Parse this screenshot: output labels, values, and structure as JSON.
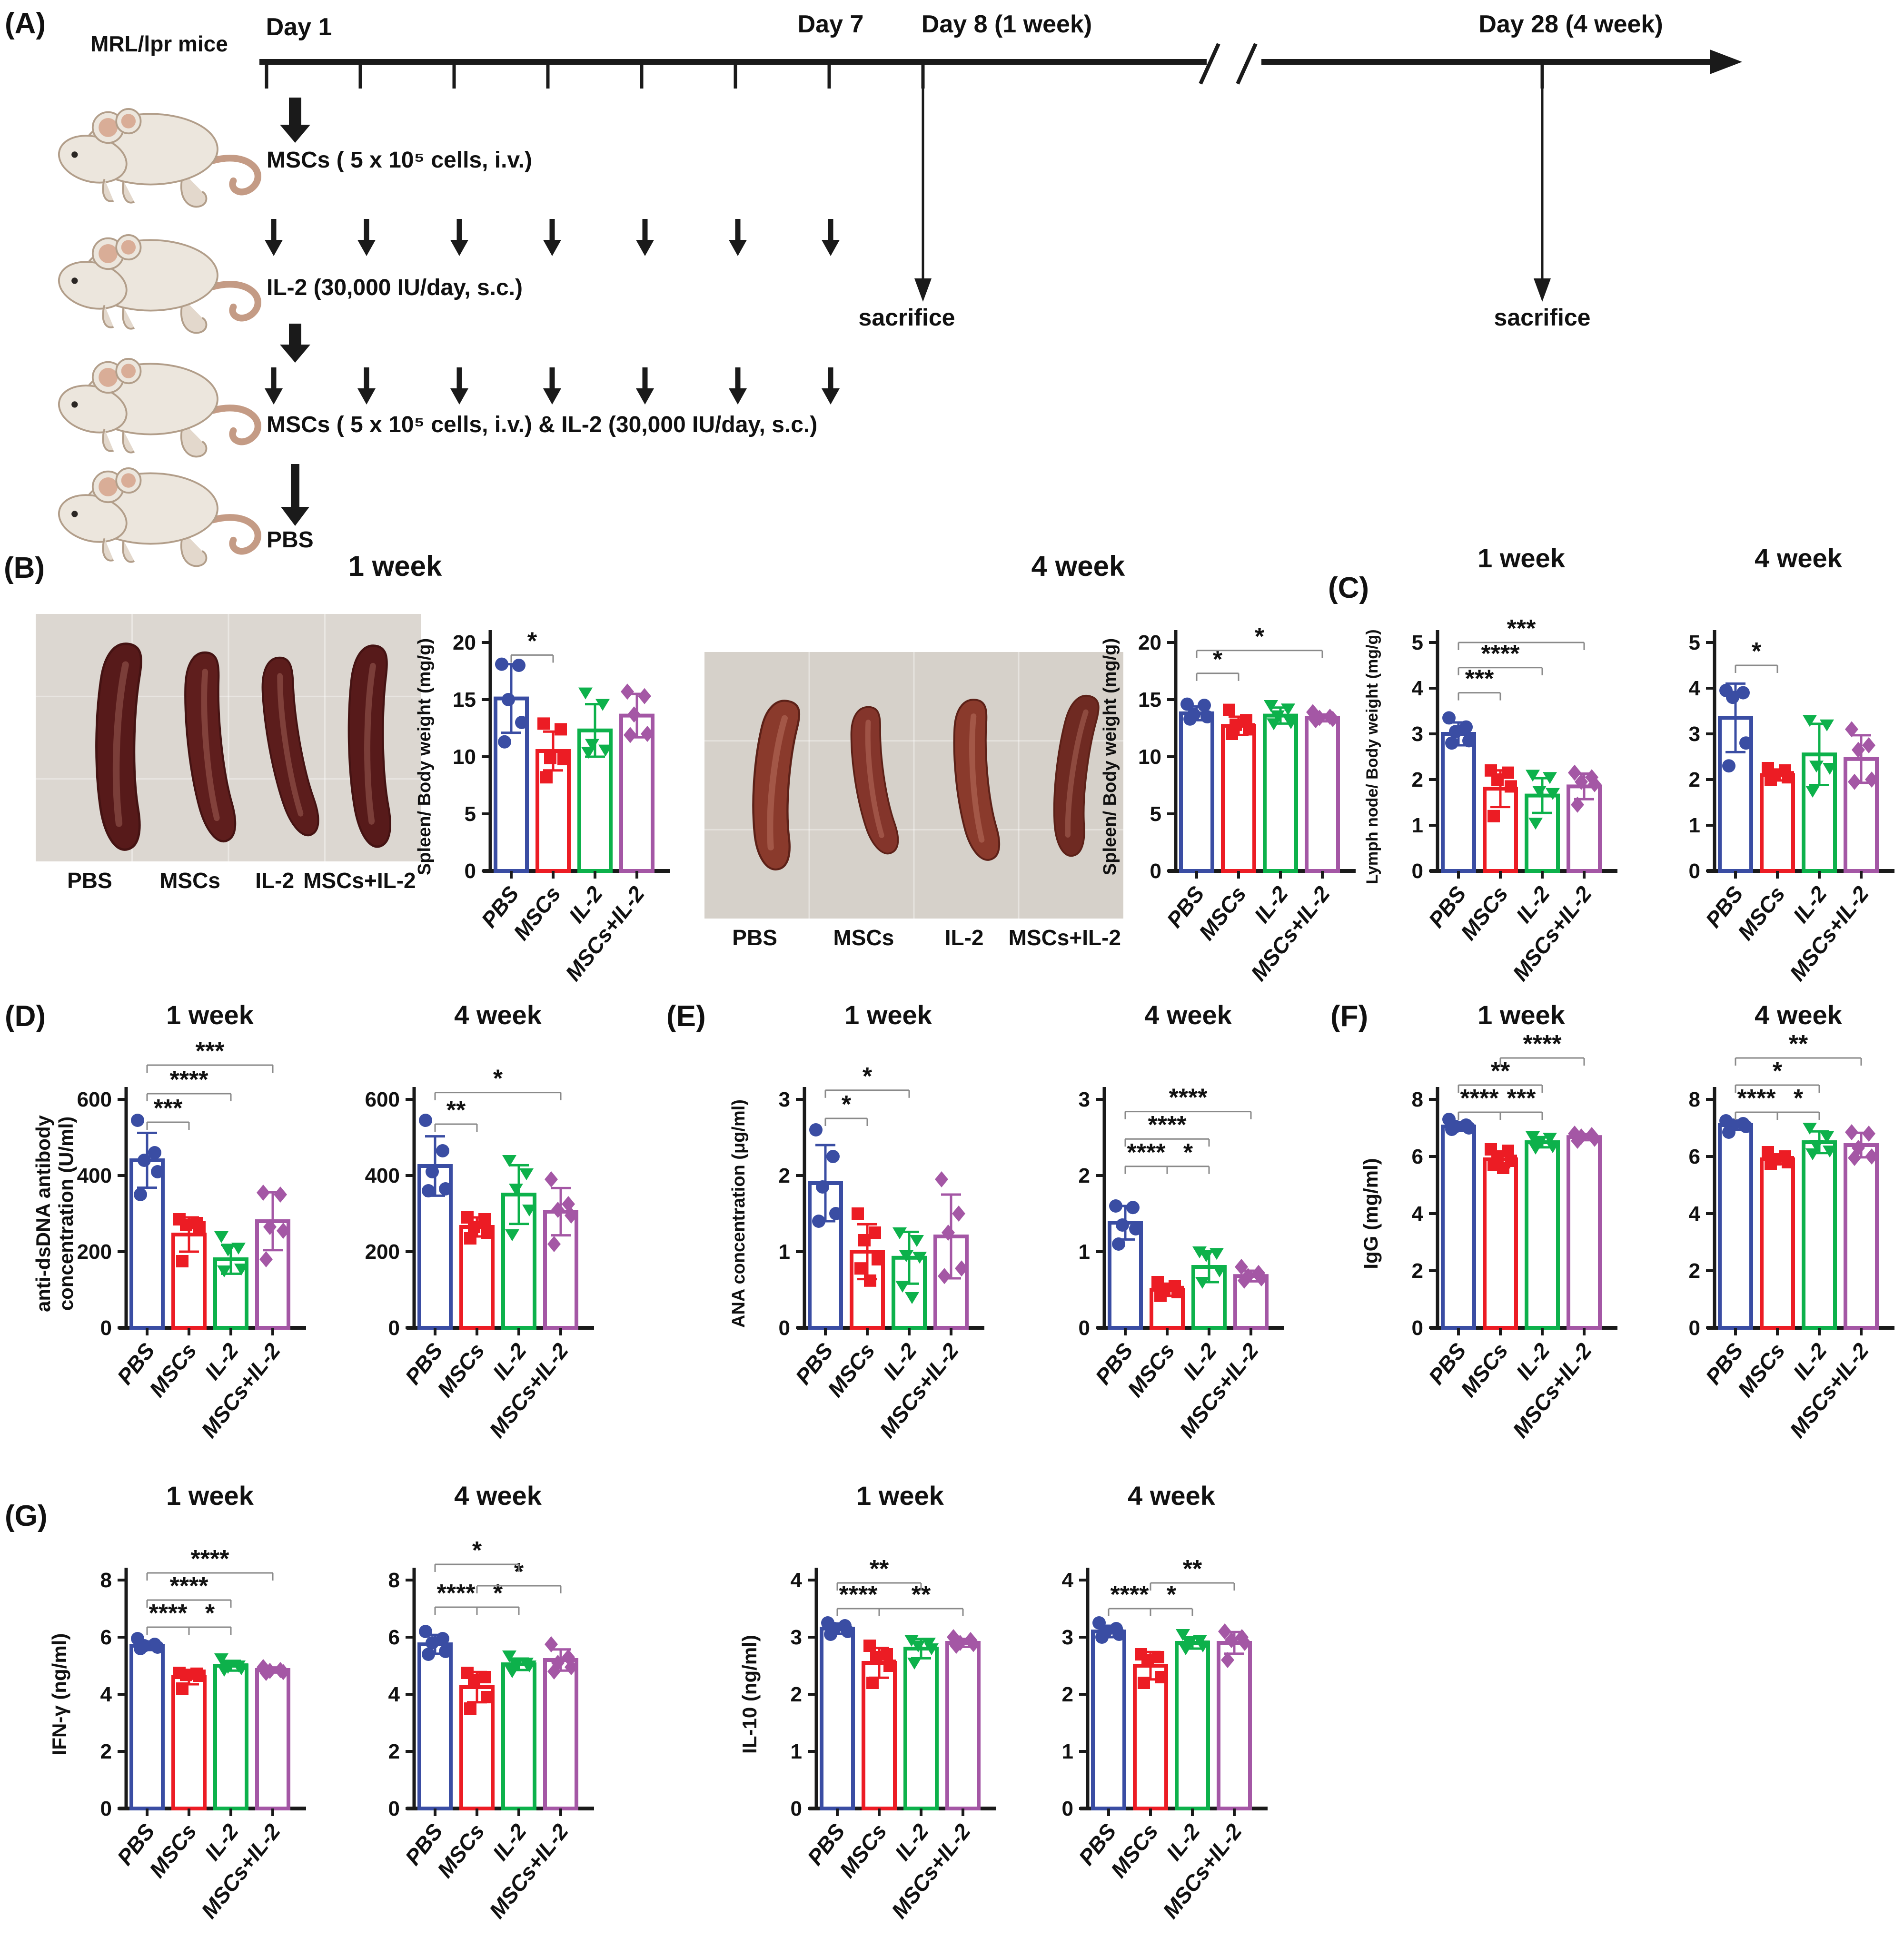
{
  "groups": [
    {
      "name": "PBS",
      "color": "#3a4da3",
      "marker": "circle"
    },
    {
      "name": "MSCs",
      "color": "#ec1c24",
      "marker": "square"
    },
    {
      "name": "IL-2",
      "color": "#0db14b",
      "marker": "triangle-down"
    },
    {
      "name": "MSCs+IL-2",
      "color": "#a457a5",
      "marker": "diamond"
    }
  ],
  "panels": {
    "a": {
      "label": "(A)",
      "subject": "MRL/lpr mice",
      "timeline_labels": [
        "Day 1",
        "Day 7",
        "Day 8 (1 week)",
        "Day 28 (4 week)"
      ],
      "sacrifice": "sacrifice",
      "treatments": [
        "MSCs ( 5 x 10⁵ cells, i.v.)",
        "IL-2 (30,000 IU/day, s.c.)",
        "MSCs ( 5 x 10⁵ cells, i.v.) & IL-2 (30,000 IU/day, s.c.)",
        "PBS"
      ]
    },
    "b": {
      "label": "(B)",
      "titles": [
        "1 week",
        "4 week"
      ],
      "photo_labels": [
        "PBS",
        "MSCs",
        "IL-2",
        "MSCs+IL-2"
      ],
      "photo_week1": {
        "bg": "#dcd7d1",
        "spleen_colors": [
          "#571a1a",
          "#5f1e1d",
          "#5c1d1c",
          "#571a1a"
        ]
      },
      "photo_week4": {
        "bg": "#d6d1ca",
        "spleen_colors": [
          "#8a3a2c",
          "#84352b",
          "#8a3a2c",
          "#6f2a22"
        ]
      }
    },
    "c": {
      "label": "(C)"
    },
    "d": {
      "label": "(D)"
    },
    "e": {
      "label": "(E)"
    },
    "f": {
      "label": "(F)"
    },
    "g": {
      "label": "(G)"
    }
  },
  "chart_data": [
    {
      "id": "B1",
      "panel": "B",
      "type": "bar",
      "title": null,
      "ylabel": "Spleen/ Body weight (mg/g)",
      "ylim": [
        0,
        20
      ],
      "yticks": [
        0,
        5,
        10,
        15,
        20
      ],
      "categories": [
        "PBS",
        "MSCs",
        "IL-2",
        "MSCs+IL-2"
      ],
      "means": [
        15.1,
        10.5,
        12.3,
        13.6
      ],
      "sd": [
        3.0,
        1.7,
        2.3,
        1.9
      ],
      "points": [
        [
          18.1,
          18.0,
          15.0,
          13.0,
          11.3
        ],
        [
          12.9,
          12.4,
          9.9,
          9.8,
          8.2
        ],
        [
          15.6,
          14.6,
          11.1,
          10.6,
          10.4
        ],
        [
          15.7,
          15.3,
          13.7,
          12.0,
          11.9
        ]
      ],
      "significance": [
        {
          "g1": 0,
          "g2": 1,
          "stars": "*",
          "y": 18.9
        }
      ]
    },
    {
      "id": "B2",
      "panel": "B",
      "type": "bar",
      "title": null,
      "ylabel": "Spleen/ Body weight (mg/g)",
      "ylim": [
        0,
        20
      ],
      "yticks": [
        0,
        5,
        10,
        15,
        20
      ],
      "categories": [
        "PBS",
        "MSCs",
        "IL-2",
        "MSCs+IL-2"
      ],
      "means": [
        13.8,
        12.7,
        13.6,
        13.4
      ],
      "sd": [
        0.6,
        0.8,
        0.7,
        0.3
      ],
      "points": [
        [
          14.6,
          14.5,
          13.7,
          13.5,
          13.3
        ],
        [
          14.1,
          13.2,
          12.8,
          12.4,
          12.0
        ],
        [
          14.5,
          14.2,
          13.6,
          13.0,
          12.9
        ],
        [
          13.9,
          13.5,
          13.4,
          13.3,
          13.2
        ]
      ],
      "significance": [
        {
          "g1": 0,
          "g2": 1,
          "stars": "*",
          "y": 17.3
        },
        {
          "g1": 0,
          "g2": 3,
          "stars": "*",
          "y": 19.3
        }
      ]
    },
    {
      "id": "C1",
      "panel": "C",
      "type": "bar",
      "title": "1 week",
      "ylabel": "Lymph node/ Body weight (mg/g)",
      "ylim": [
        0,
        5
      ],
      "yticks": [
        0,
        1,
        2,
        3,
        4,
        5
      ],
      "categories": [
        "PBS",
        "MSCs",
        "IL-2",
        "MSCs+IL-2"
      ],
      "means": [
        3.0,
        1.8,
        1.65,
        1.85
      ],
      "sd": [
        0.25,
        0.4,
        0.38,
        0.28
      ],
      "points": [
        [
          3.35,
          3.15,
          3.05,
          2.85,
          2.8
        ],
        [
          2.2,
          2.15,
          2.0,
          1.85,
          1.2
        ],
        [
          2.1,
          2.05,
          1.75,
          1.7,
          1.05
        ],
        [
          2.15,
          2.05,
          1.95,
          1.9,
          1.45
        ]
      ],
      "significance": [
        {
          "g1": 0,
          "g2": 1,
          "stars": "***",
          "y": 3.9
        },
        {
          "g1": 0,
          "g2": 2,
          "stars": "****",
          "y": 4.45
        },
        {
          "g1": 0,
          "g2": 3,
          "stars": "***",
          "y": 5.0
        }
      ]
    },
    {
      "id": "C2",
      "panel": "C",
      "type": "bar",
      "title": "4 week",
      "ylabel": null,
      "ylim": [
        0,
        5
      ],
      "yticks": [
        0,
        1,
        2,
        3,
        4,
        5
      ],
      "categories": [
        "PBS",
        "MSCs",
        "IL-2",
        "MSCs+IL-2"
      ],
      "means": [
        3.35,
        2.1,
        2.55,
        2.45
      ],
      "sd": [
        0.75,
        0.12,
        0.67,
        0.52
      ],
      "points": [
        [
          3.95,
          3.9,
          3.8,
          2.8,
          2.3
        ],
        [
          2.25,
          2.2,
          2.1,
          2.05,
          2.0
        ],
        [
          3.3,
          3.2,
          2.3,
          2.25,
          1.75
        ],
        [
          3.1,
          2.75,
          2.65,
          2.0,
          1.95
        ]
      ],
      "significance": [
        {
          "g1": 0,
          "g2": 1,
          "stars": "*",
          "y": 4.5
        }
      ]
    },
    {
      "id": "D1",
      "panel": "D",
      "type": "bar",
      "title": "1 week",
      "ylabel": [
        "anti-dsDNA antibody",
        "concentration (U/ml)"
      ],
      "ylim": [
        0,
        600
      ],
      "yticks": [
        0,
        200,
        400,
        600
      ],
      "categories": [
        "PBS",
        "MSCs",
        "IL-2",
        "MSCs+IL-2"
      ],
      "means": [
        440,
        245,
        180,
        280
      ],
      "sd": [
        72,
        45,
        38,
        76
      ],
      "points": [
        [
          545,
          460,
          440,
          410,
          350
        ],
        [
          285,
          275,
          270,
          265,
          175
        ],
        [
          240,
          210,
          205,
          155,
          150
        ],
        [
          355,
          350,
          265,
          255,
          180
        ]
      ],
      "significance": [
        {
          "g1": 0,
          "g2": 1,
          "stars": "***",
          "y": 540
        },
        {
          "g1": 0,
          "g2": 2,
          "stars": "****",
          "y": 615
        },
        {
          "g1": 0,
          "g2": 3,
          "stars": "***",
          "y": 690
        }
      ]
    },
    {
      "id": "D2",
      "panel": "D",
      "type": "bar",
      "title": "4 week",
      "ylabel": null,
      "ylim": [
        0,
        600
      ],
      "yticks": [
        0,
        200,
        400,
        600
      ],
      "categories": [
        "PBS",
        "MSCs",
        "IL-2",
        "MSCs+IL-2"
      ],
      "means": [
        425,
        265,
        350,
        305
      ],
      "sd": [
        78,
        25,
        77,
        62
      ],
      "points": [
        [
          545,
          465,
          410,
          365,
          360
        ],
        [
          290,
          285,
          265,
          250,
          235
        ],
        [
          440,
          405,
          365,
          310,
          245
        ],
        [
          390,
          325,
          310,
          295,
          220
        ]
      ],
      "significance": [
        {
          "g1": 0,
          "g2": 1,
          "stars": "**",
          "y": 535
        },
        {
          "g1": 0,
          "g2": 3,
          "stars": "*",
          "y": 618
        }
      ]
    },
    {
      "id": "E1",
      "panel": "E",
      "type": "bar",
      "title": "1 week",
      "ylabel": "ANA concentration (μg/ml)",
      "ylim": [
        0,
        3
      ],
      "yticks": [
        0,
        1,
        2,
        3
      ],
      "categories": [
        "PBS",
        "MSCs",
        "IL-2",
        "MSCs+IL-2"
      ],
      "means": [
        1.9,
        1.0,
        0.92,
        1.2
      ],
      "sd": [
        0.5,
        0.36,
        0.34,
        0.55
      ],
      "points": [
        [
          2.6,
          2.25,
          1.85,
          1.5,
          1.4
        ],
        [
          1.5,
          1.25,
          1.15,
          0.9,
          0.78,
          0.62
        ],
        [
          1.25,
          1.15,
          0.95,
          0.93,
          0.55,
          0.4
        ],
        [
          1.95,
          1.5,
          1.25,
          0.78,
          0.68
        ]
      ],
      "significance": [
        {
          "g1": 0,
          "g2": 1,
          "stars": "*",
          "y": 2.75
        },
        {
          "g1": 0,
          "g2": 2,
          "stars": "*",
          "y": 3.12
        }
      ]
    },
    {
      "id": "E2",
      "panel": "E",
      "type": "bar",
      "title": "4 week",
      "ylabel": null,
      "ylim": [
        0,
        3
      ],
      "yticks": [
        0,
        1,
        2,
        3
      ],
      "categories": [
        "PBS",
        "MSCs",
        "IL-2",
        "MSCs+IL-2"
      ],
      "means": [
        1.38,
        0.5,
        0.8,
        0.68
      ],
      "sd": [
        0.22,
        0.08,
        0.2,
        0.07
      ],
      "points": [
        [
          1.6,
          1.58,
          1.35,
          1.3,
          1.1
        ],
        [
          0.6,
          0.55,
          0.5,
          0.47,
          0.42
        ],
        [
          1.0,
          0.98,
          0.95,
          0.75,
          0.6
        ],
        [
          0.8,
          0.72,
          0.68,
          0.65,
          0.62
        ]
      ],
      "significance": [
        {
          "g1": 0,
          "g2": 1,
          "stars": "****",
          "y": 2.12
        },
        {
          "g1": 1,
          "g2": 2,
          "stars": "*",
          "y": 2.12
        },
        {
          "g1": 0,
          "g2": 2,
          "stars": "****",
          "y": 2.48
        },
        {
          "g1": 0,
          "g2": 3,
          "stars": "****",
          "y": 2.84
        }
      ]
    },
    {
      "id": "F1",
      "panel": "F",
      "type": "bar",
      "title": "1 week",
      "ylabel": "IgG (mg/ml)",
      "ylim": [
        0,
        8
      ],
      "yticks": [
        0,
        2,
        4,
        6,
        8
      ],
      "categories": [
        "PBS",
        "MSCs",
        "IL-2",
        "MSCs+IL-2"
      ],
      "means": [
        7.05,
        5.9,
        6.5,
        6.68
      ],
      "sd": [
        0.15,
        0.28,
        0.18,
        0.11
      ],
      "points": [
        [
          7.3,
          7.1,
          7.05,
          7.0,
          6.95
        ],
        [
          6.25,
          6.2,
          6.0,
          5.85,
          5.7,
          5.6
        ],
        [
          6.7,
          6.65,
          6.5,
          6.35,
          6.3
        ],
        [
          6.8,
          6.75,
          6.7,
          6.62,
          6.55
        ]
      ],
      "significance": [
        {
          "g1": 0,
          "g2": 1,
          "stars": "****",
          "y": 7.55
        },
        {
          "g1": 1,
          "g2": 2,
          "stars": "***",
          "y": 7.55
        },
        {
          "g1": 0,
          "g2": 2,
          "stars": "**",
          "y": 8.5
        },
        {
          "g1": 1,
          "g2": 3,
          "stars": "****",
          "y": 9.45
        }
      ]
    },
    {
      "id": "F2",
      "panel": "F",
      "type": "bar",
      "title": "4 week",
      "ylabel": null,
      "ylim": [
        0,
        8
      ],
      "yticks": [
        0,
        2,
        4,
        6,
        8
      ],
      "categories": [
        "PBS",
        "MSCs",
        "IL-2",
        "MSCs+IL-2"
      ],
      "means": [
        7.1,
        5.9,
        6.5,
        6.4
      ],
      "sd": [
        0.16,
        0.17,
        0.38,
        0.43
      ],
      "points": [
        [
          7.25,
          7.15,
          7.1,
          7.05,
          6.85
        ],
        [
          6.15,
          6.0,
          5.9,
          5.8,
          5.75
        ],
        [
          7.0,
          6.7,
          6.4,
          6.2,
          6.1
        ],
        [
          6.85,
          6.8,
          6.3,
          6.0,
          5.95
        ]
      ],
      "significance": [
        {
          "g1": 0,
          "g2": 1,
          "stars": "****",
          "y": 7.55
        },
        {
          "g1": 1,
          "g2": 2,
          "stars": "*",
          "y": 7.55
        },
        {
          "g1": 0,
          "g2": 2,
          "stars": "*",
          "y": 8.5
        },
        {
          "g1": 0,
          "g2": 3,
          "stars": "**",
          "y": 9.45
        }
      ]
    },
    {
      "id": "G1",
      "panel": "G",
      "type": "bar",
      "title": "1 week",
      "ylabel": "IFN-γ (ng/ml)",
      "ylim": [
        0,
        8
      ],
      "yticks": [
        0,
        2,
        4,
        6,
        8
      ],
      "categories": [
        "PBS",
        "MSCs",
        "IL-2",
        "MSCs+IL-2"
      ],
      "means": [
        5.7,
        4.6,
        5.0,
        4.85
      ],
      "sd": [
        0.15,
        0.25,
        0.17,
        0.09
      ],
      "points": [
        [
          5.95,
          5.75,
          5.7,
          5.65,
          5.6
        ],
        [
          4.75,
          4.72,
          4.68,
          4.65,
          4.2
        ],
        [
          5.25,
          5.0,
          4.95,
          4.9,
          4.85
        ],
        [
          4.95,
          4.85,
          4.82,
          4.78,
          4.75
        ]
      ],
      "significance": [
        {
          "g1": 0,
          "g2": 1,
          "stars": "****",
          "y": 6.35
        },
        {
          "g1": 1,
          "g2": 2,
          "stars": "*",
          "y": 6.35
        },
        {
          "g1": 0,
          "g2": 2,
          "stars": "****",
          "y": 7.3
        },
        {
          "g1": 0,
          "g2": 3,
          "stars": "****",
          "y": 8.25
        }
      ]
    },
    {
      "id": "G2",
      "panel": "G",
      "type": "bar",
      "title": "4 week",
      "ylabel": null,
      "ylim": [
        0,
        8
      ],
      "yticks": [
        0,
        2,
        4,
        6,
        8
      ],
      "categories": [
        "PBS",
        "MSCs",
        "IL-2",
        "MSCs+IL-2"
      ],
      "means": [
        5.75,
        4.25,
        5.05,
        5.2
      ],
      "sd": [
        0.33,
        0.53,
        0.2,
        0.37
      ],
      "points": [
        [
          6.2,
          5.95,
          5.8,
          5.5,
          5.4
        ],
        [
          4.75,
          4.6,
          4.5,
          3.9,
          3.5
        ],
        [
          5.35,
          5.1,
          5.05,
          5.0,
          4.8
        ],
        [
          5.75,
          5.3,
          5.1,
          4.95,
          4.8
        ]
      ],
      "significance": [
        {
          "g1": 0,
          "g2": 1,
          "stars": "****",
          "y": 7.05
        },
        {
          "g1": 1,
          "g2": 2,
          "stars": "*",
          "y": 7.05
        },
        {
          "g1": 1,
          "g2": 3,
          "stars": "*",
          "y": 7.8
        },
        {
          "g1": 0,
          "g2": 2,
          "stars": "*",
          "y": 8.55
        }
      ]
    },
    {
      "id": "G3",
      "panel": "G",
      "type": "bar",
      "title": "1 week",
      "ylabel": "IL-10 (ng/ml)",
      "ylim": [
        0,
        4
      ],
      "yticks": [
        0,
        1,
        2,
        3,
        4
      ],
      "categories": [
        "PBS",
        "MSCs",
        "IL-2",
        "MSCs+IL-2"
      ],
      "means": [
        3.15,
        2.55,
        2.8,
        2.9
      ],
      "sd": [
        0.09,
        0.26,
        0.17,
        0.07
      ],
      "points": [
        [
          3.25,
          3.2,
          3.15,
          3.1,
          3.05
        ],
        [
          2.85,
          2.7,
          2.65,
          2.5,
          2.2
        ],
        [
          2.95,
          2.9,
          2.85,
          2.8,
          2.55
        ],
        [
          3.0,
          2.95,
          2.9,
          2.88,
          2.85
        ]
      ],
      "significance": [
        {
          "g1": 0,
          "g2": 1,
          "stars": "****",
          "y": 3.5
        },
        {
          "g1": 1,
          "g2": 3,
          "stars": "**",
          "y": 3.5
        },
        {
          "g1": 0,
          "g2": 2,
          "stars": "**",
          "y": 3.95
        }
      ]
    },
    {
      "id": "G4",
      "panel": "G",
      "type": "bar",
      "title": "4 week",
      "ylabel": null,
      "ylim": [
        0,
        4
      ],
      "yticks": [
        0,
        1,
        2,
        3,
        4
      ],
      "categories": [
        "PBS",
        "MSCs",
        "IL-2",
        "MSCs+IL-2"
      ],
      "means": [
        3.1,
        2.5,
        2.9,
        2.9
      ],
      "sd": [
        0.1,
        0.24,
        0.1,
        0.19
      ],
      "points": [
        [
          3.25,
          3.15,
          3.1,
          3.05,
          3.0
        ],
        [
          2.7,
          2.65,
          2.6,
          2.3,
          2.2
        ],
        [
          3.05,
          2.95,
          2.9,
          2.85,
          2.8
        ],
        [
          3.1,
          3.0,
          2.95,
          2.9,
          2.6
        ]
      ],
      "significance": [
        {
          "g1": 0,
          "g2": 1,
          "stars": "****",
          "y": 3.5
        },
        {
          "g1": 1,
          "g2": 2,
          "stars": "*",
          "y": 3.5
        },
        {
          "g1": 1,
          "g2": 3,
          "stars": "**",
          "y": 3.95
        }
      ]
    }
  ]
}
